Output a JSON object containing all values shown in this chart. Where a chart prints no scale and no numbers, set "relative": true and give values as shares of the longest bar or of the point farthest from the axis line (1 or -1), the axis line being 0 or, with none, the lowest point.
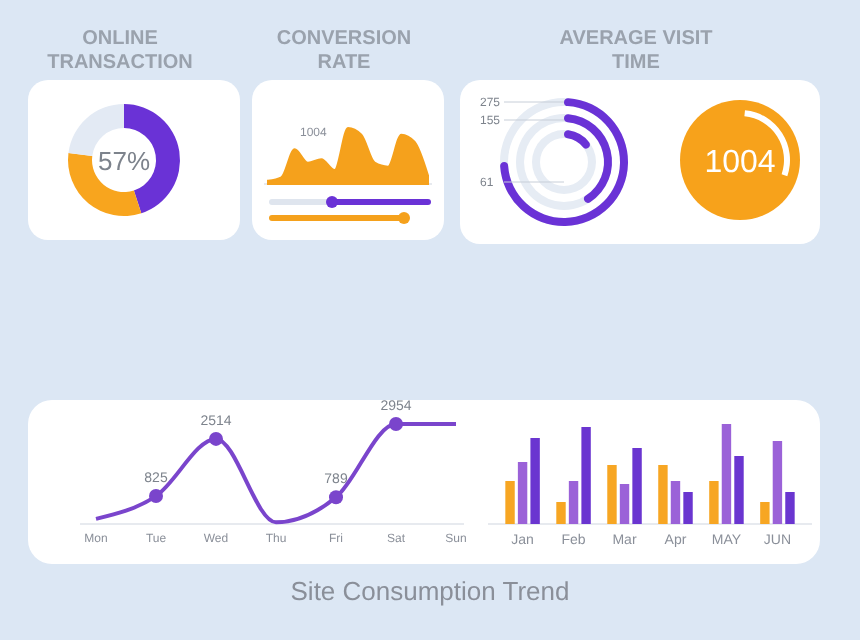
{
  "chart_data": [
    {
      "type": "donut",
      "title": "ONLINE TRANSACTION",
      "categories": [
        null,
        null,
        null
      ],
      "values": [
        45,
        32,
        23
      ],
      "colors": [
        "#6a32d6",
        "#f8a51e",
        "#e3eaf4"
      ],
      "annotations": [
        "57%"
      ]
    },
    {
      "type": "area",
      "title": "CONVERSION RATE",
      "relative": true,
      "categories": [
        null,
        null,
        null,
        null,
        null,
        null,
        null,
        null,
        null,
        null,
        null,
        null,
        null
      ],
      "series": [
        {
          "color": "#f5a11c",
          "values": [
            0.06,
            0.12,
            0.62,
            0.38,
            0.44,
            0.25,
            1,
            0.88,
            0.38,
            0.31,
            0.88,
            0.75,
            0.15
          ]
        }
      ],
      "annotations": [
        "1004"
      ]
    },
    {
      "type": "other",
      "title": "AVERAGE VISIT TIME",
      "categories": [
        null,
        null,
        null
      ],
      "values": [
        275,
        155,
        61
      ],
      "color": "#6a32d6",
      "data_labels": true
    },
    {
      "type": "other",
      "annotations": [
        "1004"
      ]
    },
    {
      "type": "line",
      "categories": [
        "Mon",
        "Tue",
        "Wed",
        "Thu",
        "Fri",
        "Sat",
        "Sun"
      ],
      "tick_labels": "x",
      "marker": "circle",
      "line_style": "solid",
      "series": [
        {
          "color": "#7a45cc",
          "values": [
            150,
            825,
            2514,
            50,
            789,
            2954,
            2954
          ],
          "value_labels": [
            null,
            "825",
            "2514",
            null,
            "789",
            "2954",
            null
          ]
        }
      ]
    },
    {
      "type": "bar",
      "relative": true,
      "categories": [
        "Jan",
        "Feb",
        "Mar",
        "Apr",
        "MAY",
        "JUN"
      ],
      "series": [
        {
          "color": "#f7a623",
          "values": [
            0.43,
            0.22,
            0.59,
            0.59,
            0.43,
            0.22
          ]
        },
        {
          "color": "#9b62d8",
          "values": [
            0.62,
            0.43,
            0.4,
            0.43,
            1,
            0.83
          ]
        },
        {
          "color": "#6a35d0",
          "values": [
            0.86,
            0.97,
            0.76,
            0.32,
            0.68,
            0.32
          ]
        }
      ],
      "annotations": [
        "Site Consumption Trend"
      ]
    }
  ]
}
